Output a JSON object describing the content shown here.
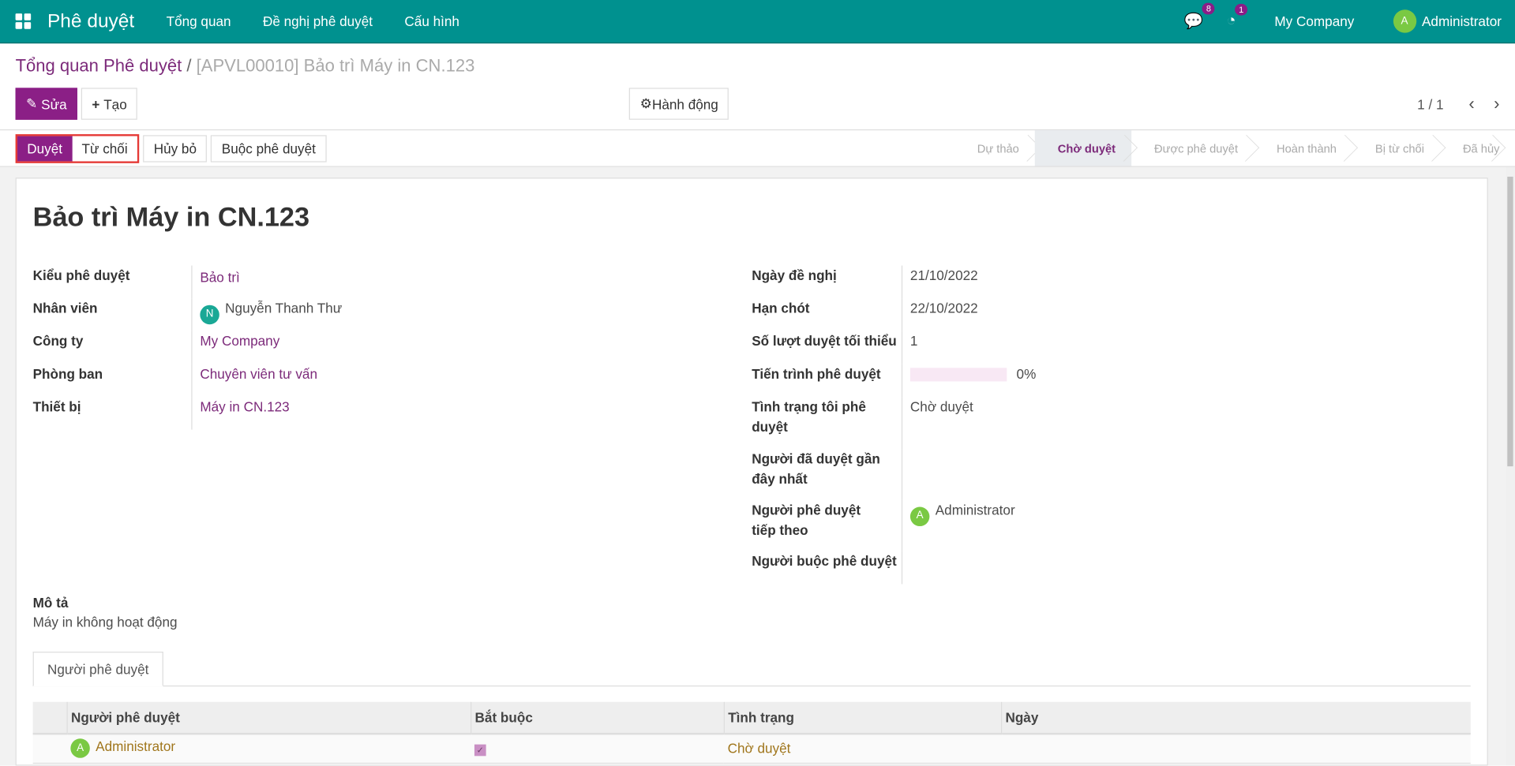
{
  "navbar": {
    "app_title": "Phê duyệt",
    "menus": [
      "Tổng quan",
      "Đề nghị phê duyệt",
      "Cấu hình"
    ],
    "messages_count": "8",
    "activities_count": "1",
    "company": "My Company",
    "user": "Administrator",
    "user_initial": "A"
  },
  "breadcrumb": {
    "parent": "Tổng quan Phê duyệt",
    "current": "[APVL00010] Bảo trì Máy in CN.123"
  },
  "toolbar": {
    "edit": "Sửa",
    "create": "Tạo",
    "action": "Hành động",
    "pager": "1 / 1"
  },
  "statusbar": {
    "buttons": [
      "Duyệt",
      "Từ chối",
      "Hủy bỏ",
      "Buộc phê duyệt"
    ],
    "stages": [
      "Dự thảo",
      "Chờ duyệt",
      "Được phê duyệt",
      "Hoàn thành",
      "Bị từ chối",
      "Đã hủy"
    ],
    "active_stage": "Chờ duyệt"
  },
  "form": {
    "title": "Bảo trì Máy in CN.123",
    "left": [
      {
        "label": "Kiểu phê duyệt",
        "value": "Bảo trì"
      },
      {
        "label": "Nhân viên",
        "value": "Nguyễn Thanh Thư",
        "initial": "N"
      },
      {
        "label": "Công ty",
        "value": "My Company"
      },
      {
        "label": "Phòng ban",
        "value": "Chuyên viên tư vấn"
      },
      {
        "label": "Thiết bị",
        "value": "Máy in CN.123"
      }
    ],
    "right": [
      {
        "label": "Ngày đề nghị",
        "value": "21/10/2022"
      },
      {
        "label": "Hạn chót",
        "value": "22/10/2022"
      },
      {
        "label": "Số lượt duyệt tối thiểu",
        "value": "1"
      },
      {
        "label": "Tiến trình phê duyệt",
        "value": "0%",
        "progress": 0
      },
      {
        "label": "Tình trạng tôi phê duyệt",
        "value": "Chờ duyệt"
      },
      {
        "label": "Người đã duyệt gần đây nhất",
        "value": ""
      },
      {
        "label": "Người phê duyệt tiếp theo",
        "value": "Administrator",
        "initial": "A"
      },
      {
        "label": "Người buộc phê duyệt",
        "value": ""
      }
    ],
    "description_label": "Mô tả",
    "description": "Máy in không hoạt động",
    "tab": "Người phê duyệt",
    "table": {
      "headers": [
        "Người phê duyệt",
        "Bắt buộc",
        "Tình trạng",
        "Ngày"
      ],
      "rows": [
        {
          "approver": "Administrator",
          "initial": "A",
          "required": true,
          "status": "Chờ duyệt",
          "date": ""
        }
      ]
    }
  },
  "colors": {
    "navbar": "#00918f",
    "primary": "#8b1f86",
    "link": "#7c2a7a",
    "status_text": "#a0761c"
  }
}
